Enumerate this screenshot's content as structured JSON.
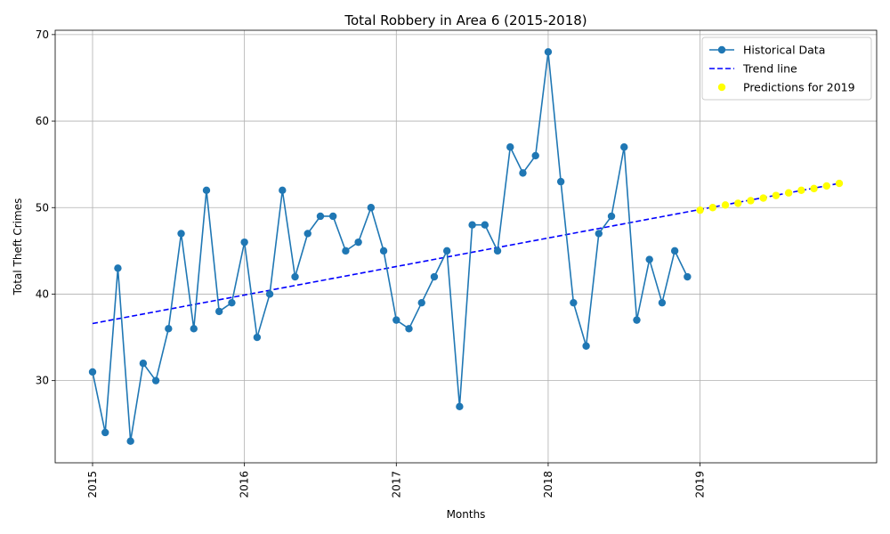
{
  "chart_data": {
    "type": "line",
    "title": "Total Robbery in Area 6 (2015-2018)",
    "xlabel": "Months",
    "ylabel": "Total Theft Crimes",
    "x_ticks": [
      "2015",
      "2016",
      "2017",
      "2018",
      "2019"
    ],
    "y_ticks": [
      30,
      40,
      50,
      60,
      70
    ],
    "ylim": [
      20.5,
      70.5
    ],
    "grid": true,
    "legend_position": "top-right",
    "series": [
      {
        "name": "Historical Data",
        "type": "line",
        "color": "#1f77b4",
        "x": [
          "2015-01",
          "2015-02",
          "2015-03",
          "2015-04",
          "2015-05",
          "2015-06",
          "2015-07",
          "2015-08",
          "2015-09",
          "2015-10",
          "2015-11",
          "2015-12",
          "2016-01",
          "2016-02",
          "2016-03",
          "2016-04",
          "2016-05",
          "2016-06",
          "2016-07",
          "2016-08",
          "2016-09",
          "2016-10",
          "2016-11",
          "2016-12",
          "2017-01",
          "2017-02",
          "2017-03",
          "2017-04",
          "2017-05",
          "2017-06",
          "2017-07",
          "2017-08",
          "2017-09",
          "2017-10",
          "2017-11",
          "2017-12",
          "2018-01",
          "2018-02",
          "2018-03",
          "2018-04",
          "2018-05",
          "2018-06",
          "2018-07",
          "2018-08",
          "2018-09",
          "2018-10",
          "2018-11",
          "2018-12"
        ],
        "values": [
          31,
          24,
          43,
          23,
          32,
          30,
          36,
          47,
          36,
          52,
          38,
          39,
          46,
          35,
          40,
          52,
          42,
          47,
          49,
          49,
          45,
          46,
          50,
          45,
          37,
          36,
          39,
          42,
          45,
          27,
          48,
          48,
          45,
          57,
          54,
          56,
          68,
          53,
          39,
          34,
          47,
          49,
          57,
          37,
          44,
          39,
          45,
          42
        ]
      },
      {
        "name": "Trend line",
        "type": "line",
        "style": "dashed",
        "color": "#0000ff",
        "x": [
          "2015-01",
          "2019-12"
        ],
        "values": [
          36.6,
          52.8
        ]
      },
      {
        "name": "Predictions for 2019",
        "type": "scatter",
        "color": "#ffff00",
        "x": [
          "2019-01",
          "2019-02",
          "2019-03",
          "2019-04",
          "2019-05",
          "2019-06",
          "2019-07",
          "2019-08",
          "2019-09",
          "2019-10",
          "2019-11",
          "2019-12"
        ],
        "values": [
          49.7,
          50.0,
          50.3,
          50.5,
          50.8,
          51.1,
          51.4,
          51.7,
          52.0,
          52.2,
          52.5,
          52.8
        ]
      }
    ]
  }
}
